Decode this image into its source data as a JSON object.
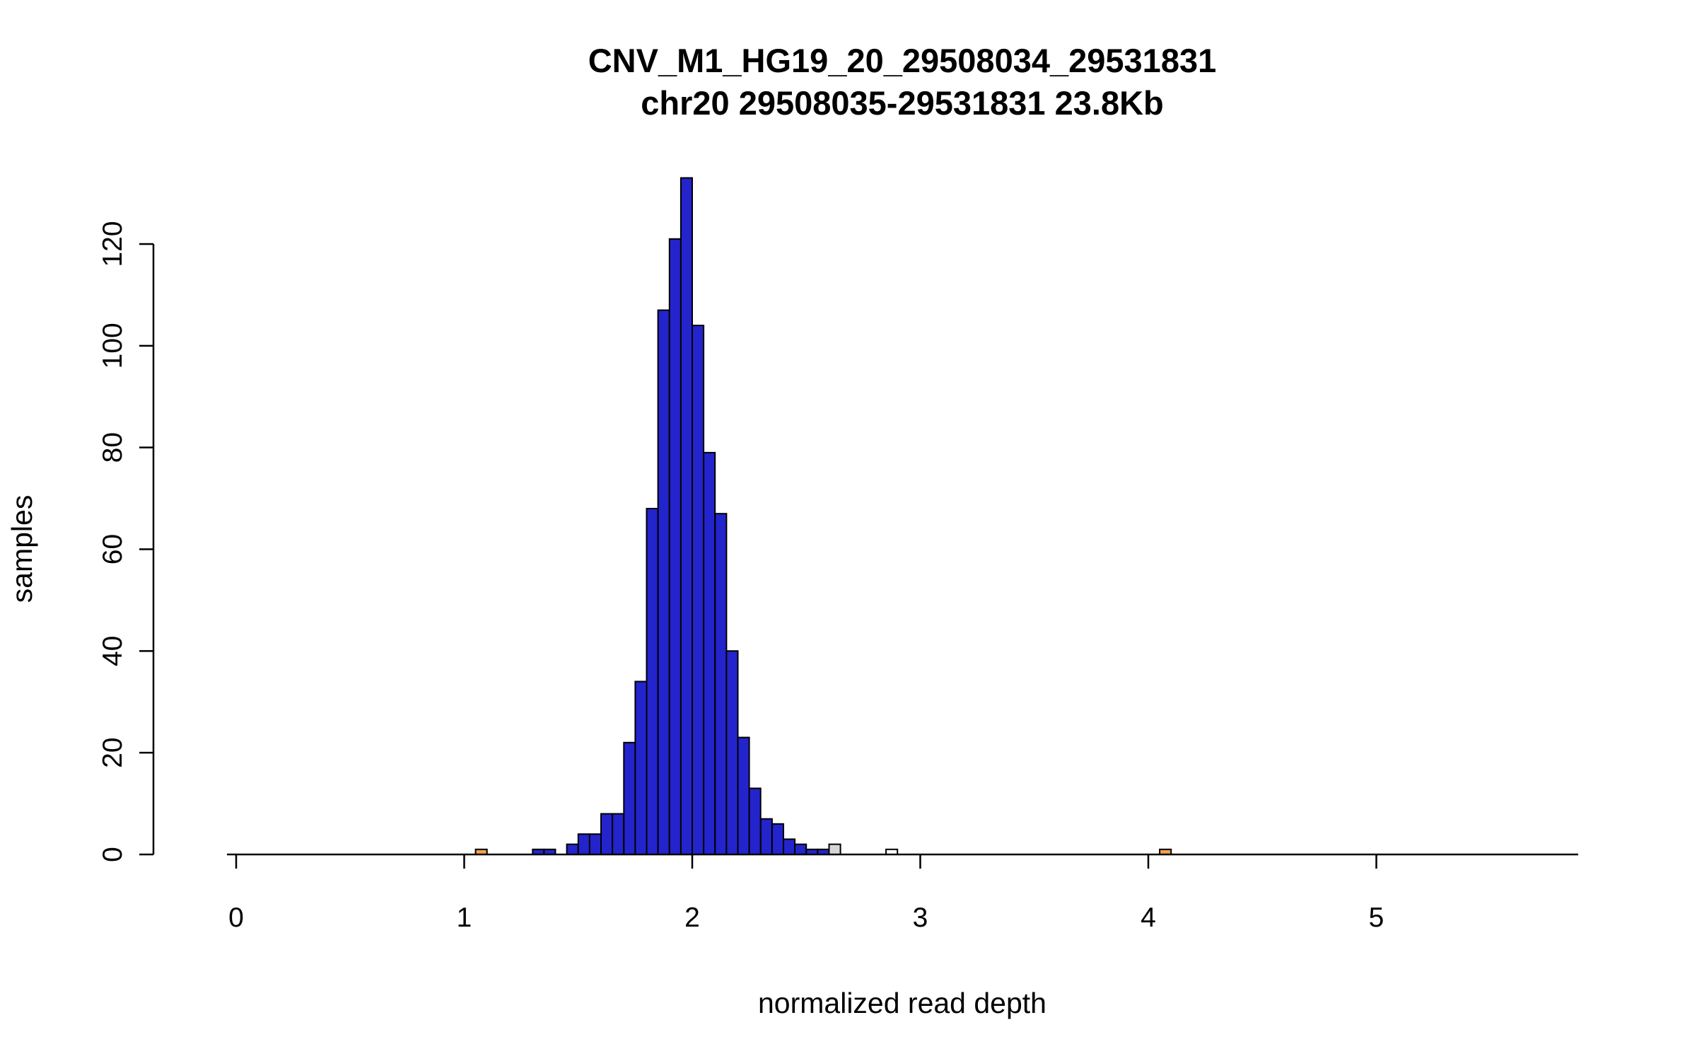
{
  "chart": {
    "title": "CNV_M1_HG19_20_29508034_29531831",
    "subtitle": "chr20 29508035-29531831 23.8Kb",
    "xlabel": "normalized read depth",
    "ylabel": "samples"
  },
  "chart_data": {
    "type": "bar",
    "title": "CNV_M1_HG19_20_29508034_29531831",
    "subtitle": "chr20 29508035-29531831 23.8Kb",
    "xlabel": "normalized read depth",
    "ylabel": "samples",
    "bin_width": 0.05,
    "x_ticks": [
      0,
      1,
      2,
      3,
      4,
      5
    ],
    "y_ticks": [
      0,
      20,
      40,
      60,
      80,
      100,
      120
    ],
    "xlim": [
      -0.04,
      5.9
    ],
    "ylim": [
      0,
      133
    ],
    "grid": false,
    "legend": "none",
    "colors": {
      "blue": "#2424CC",
      "orange": "#F2A14F",
      "gray": "#D6D6D6",
      "white": "#FDFDFD"
    },
    "bars": [
      {
        "x": 1.05,
        "h": 1,
        "color": "orange"
      },
      {
        "x": 1.3,
        "h": 1,
        "color": "blue"
      },
      {
        "x": 1.35,
        "h": 1,
        "color": "blue"
      },
      {
        "x": 1.45,
        "h": 2,
        "color": "blue"
      },
      {
        "x": 1.5,
        "h": 4,
        "color": "blue"
      },
      {
        "x": 1.55,
        "h": 4,
        "color": "blue"
      },
      {
        "x": 1.6,
        "h": 8,
        "color": "blue"
      },
      {
        "x": 1.65,
        "h": 8,
        "color": "blue"
      },
      {
        "x": 1.7,
        "h": 22,
        "color": "blue"
      },
      {
        "x": 1.75,
        "h": 34,
        "color": "blue"
      },
      {
        "x": 1.8,
        "h": 68,
        "color": "blue"
      },
      {
        "x": 1.85,
        "h": 107,
        "color": "blue"
      },
      {
        "x": 1.9,
        "h": 121,
        "color": "blue"
      },
      {
        "x": 1.95,
        "h": 133,
        "color": "blue"
      },
      {
        "x": 2.0,
        "h": 104,
        "color": "blue"
      },
      {
        "x": 2.05,
        "h": 79,
        "color": "blue"
      },
      {
        "x": 2.1,
        "h": 67,
        "color": "blue"
      },
      {
        "x": 2.15,
        "h": 40,
        "color": "blue"
      },
      {
        "x": 2.2,
        "h": 23,
        "color": "blue"
      },
      {
        "x": 2.25,
        "h": 13,
        "color": "blue"
      },
      {
        "x": 2.3,
        "h": 7,
        "color": "blue"
      },
      {
        "x": 2.35,
        "h": 6,
        "color": "blue"
      },
      {
        "x": 2.4,
        "h": 3,
        "color": "blue"
      },
      {
        "x": 2.45,
        "h": 2,
        "color": "blue"
      },
      {
        "x": 2.5,
        "h": 1,
        "color": "blue"
      },
      {
        "x": 2.55,
        "h": 1,
        "color": "blue"
      },
      {
        "x": 2.6,
        "h": 2,
        "color": "gray"
      },
      {
        "x": 2.85,
        "h": 1,
        "color": "white"
      },
      {
        "x": 4.05,
        "h": 1,
        "color": "orange"
      }
    ]
  }
}
